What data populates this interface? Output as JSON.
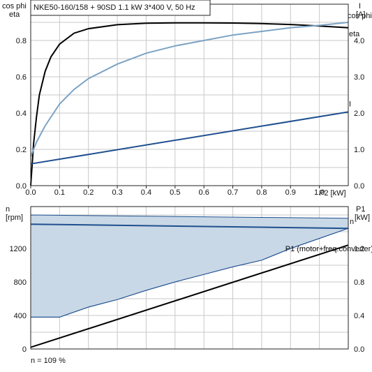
{
  "colors": {
    "eta": "#000000",
    "cos_phi": "#7ba3c4",
    "current": "#1f4f8f",
    "speed": "#1f4f8f",
    "p1": "#000000",
    "range_fill": "#c9d8e6",
    "range_edge": "#1f4f8f"
  },
  "title": "NKE50-160/158 + 90SD   1.1 kW   3*400 V, 50 Hz",
  "footnote": "n = 109 %",
  "chart_data": [
    {
      "type": "line",
      "panel": "top",
      "left_axis_label_1": "cos phi",
      "left_axis_label_2": "eta",
      "right_axis_label_1": "I",
      "right_axis_label_2": "[A]",
      "xlabel": "P2 [kW]",
      "xlim": [
        0,
        1.1
      ],
      "ylim": [
        0,
        1.0
      ],
      "y2lim": [
        0,
        5.0
      ],
      "xticks": [
        "0.0",
        "0.1",
        "0.2",
        "0.3",
        "0.4",
        "0.5",
        "0.6",
        "0.7",
        "0.8",
        "0.9",
        "1.0"
      ],
      "yticks": [
        "0.0",
        "0.2",
        "0.4",
        "0.6",
        "0.8"
      ],
      "y2ticks": [
        "0.0",
        "1.0",
        "2.0",
        "3.0",
        "4.0"
      ],
      "grid": true,
      "series": [
        {
          "name": "eta",
          "axis": "left",
          "x": [
            0,
            0.01,
            0.02,
            0.03,
            0.05,
            0.07,
            0.1,
            0.15,
            0.2,
            0.3,
            0.4,
            0.5,
            0.6,
            0.7,
            0.8,
            0.9,
            1.0,
            1.1
          ],
          "y": [
            0.0,
            0.23,
            0.38,
            0.5,
            0.63,
            0.71,
            0.78,
            0.84,
            0.865,
            0.887,
            0.895,
            0.897,
            0.897,
            0.896,
            0.893,
            0.888,
            0.88,
            0.87
          ]
        },
        {
          "name": "cos phi",
          "axis": "left",
          "x": [
            0,
            0.02,
            0.05,
            0.1,
            0.15,
            0.2,
            0.3,
            0.4,
            0.5,
            0.6,
            0.7,
            0.8,
            0.9,
            1.0,
            1.1
          ],
          "y": [
            0.16,
            0.24,
            0.33,
            0.45,
            0.53,
            0.59,
            0.67,
            0.73,
            0.77,
            0.8,
            0.83,
            0.85,
            0.87,
            0.883,
            0.9
          ]
        },
        {
          "name": "I",
          "axis": "right",
          "x": [
            0,
            1.1
          ],
          "y": [
            0.6,
            2.03
          ]
        }
      ]
    },
    {
      "type": "area",
      "panel": "bottom",
      "left_axis_label_1": "n",
      "left_axis_label_2": "[rpm]",
      "right_axis_label_1": "P1",
      "right_axis_label_2": "[kW]",
      "xlim": [
        0,
        1.1
      ],
      "ylim": [
        0,
        1700
      ],
      "y2lim": [
        0,
        1.7
      ],
      "yticks": [
        "0",
        "400",
        "800",
        "1200"
      ],
      "y2ticks": [
        "0.0",
        "0.4",
        "0.8",
        "1.2"
      ],
      "grid": true,
      "speed_range": {
        "upper_x": [
          0,
          1.1
        ],
        "upper_y": [
          1600,
          1560
        ],
        "lower_x": [
          0,
          0.1,
          0.2,
          0.3,
          0.4,
          0.5,
          0.6,
          0.7,
          0.8,
          0.9,
          1.0,
          1.1
        ],
        "lower_y": [
          380,
          380,
          500,
          590,
          700,
          800,
          890,
          980,
          1060,
          1200,
          1320,
          1440
        ]
      },
      "series": [
        {
          "name": "n",
          "axis": "left",
          "x": [
            0,
            1.1
          ],
          "y": [
            1490,
            1440
          ]
        },
        {
          "name": "P1 (motor+freq.converter)",
          "axis": "right",
          "x": [
            0,
            1.1
          ],
          "y": [
            0.02,
            1.24
          ]
        }
      ]
    }
  ]
}
